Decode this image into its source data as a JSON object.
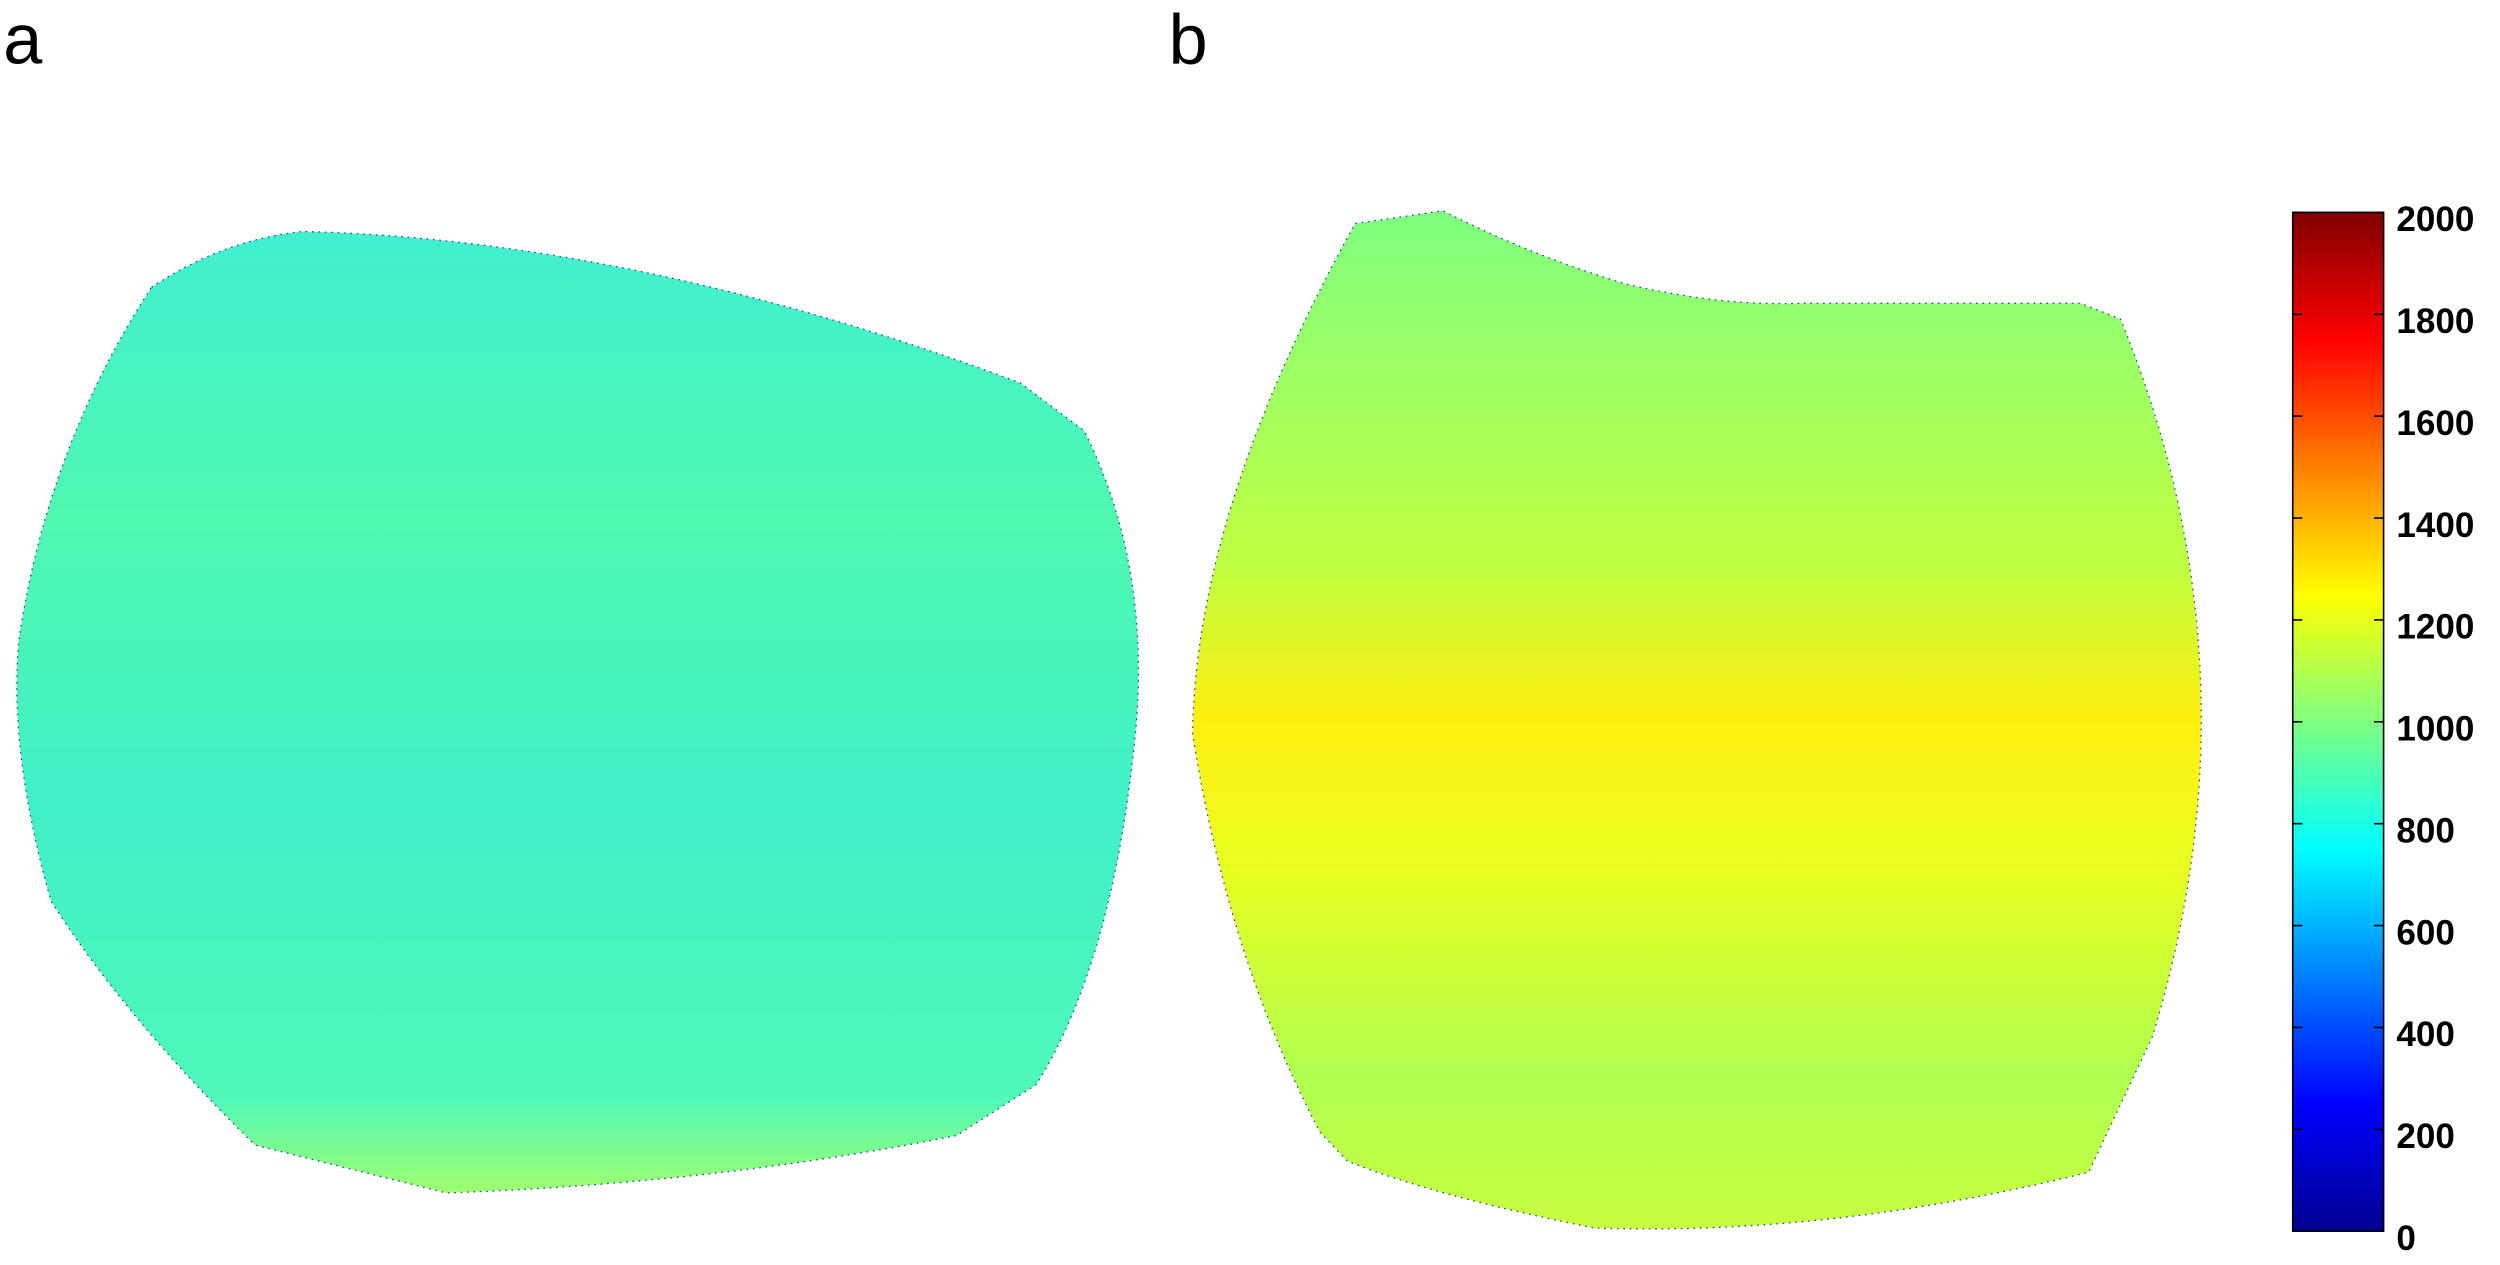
{
  "chart_data": {
    "type": "heatmap",
    "panels": [
      {
        "label": "a"
      },
      {
        "label": "b"
      }
    ],
    "ylim": [
      0,
      2000
    ],
    "yticks": [
      0,
      200,
      400,
      600,
      800,
      1000,
      1200,
      1400,
      1600,
      1800,
      2000
    ]
  }
}
